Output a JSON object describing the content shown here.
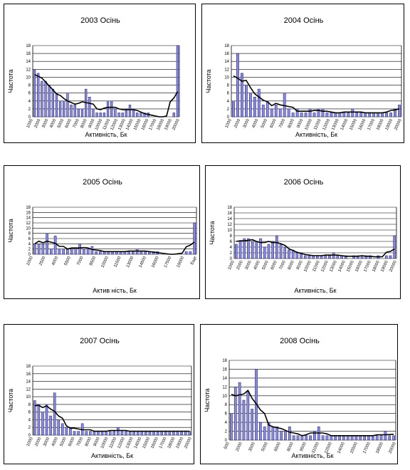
{
  "chart_data": [
    {
      "type": "bar",
      "title": "2003 Осінь",
      "xlabel": "Активність, Бк",
      "ylabel": "Частота",
      "ylim": [
        0,
        18
      ],
      "yticks": [
        "0",
        "2",
        "4",
        "6",
        "8",
        "10",
        "12",
        "14",
        "16",
        "18"
      ],
      "xticks": [
        "1000",
        "2000",
        "3000",
        "4000",
        "5000",
        "6000",
        "7000",
        "8000",
        "9000",
        "10000",
        "11000",
        "12000",
        "13000",
        "14000",
        "15000",
        "16000",
        "17000",
        "18000",
        "19000",
        "20000"
      ],
      "values": [
        12,
        11,
        9,
        9,
        8,
        7,
        6,
        4,
        4,
        6,
        3,
        3,
        2,
        2,
        7,
        5,
        2,
        1,
        1,
        1,
        4,
        4,
        2,
        1,
        1,
        2,
        3,
        2,
        1,
        1,
        1,
        1,
        0,
        0,
        0,
        0,
        0,
        0,
        1,
        18
      ]
    },
    {
      "type": "bar",
      "title": "2004 Осінь",
      "xlabel": "Активність, Бк",
      "ylabel": "Частота",
      "ylim": [
        0,
        18
      ],
      "yticks": [
        "0",
        "2",
        "4",
        "6",
        "8",
        "10",
        "12",
        "14",
        "16",
        "18"
      ],
      "xticks": [
        "1000",
        "2000",
        "3000",
        "4000",
        "5000",
        "6000",
        "7000",
        "8000",
        "9000",
        "10000",
        "11000",
        "12000",
        "13000",
        "14000",
        "15000",
        "16000",
        "17000",
        "18000",
        "19000",
        "20000"
      ],
      "values": [
        4,
        16,
        11,
        8,
        6,
        5,
        7,
        3,
        4,
        2,
        3,
        2,
        6,
        2,
        1,
        2,
        1,
        1,
        2,
        1,
        2,
        2,
        1,
        1,
        1,
        1,
        1,
        1,
        2,
        1,
        1,
        1,
        1,
        1,
        1,
        1,
        1,
        1,
        2,
        3
      ]
    },
    {
      "type": "bar",
      "title": "2005 Осінь",
      "xlabel": "Актив ність, Бк",
      "ylabel": "Частота",
      "ylim": [
        0,
        18
      ],
      "yticks": [
        "0",
        "2",
        "4",
        "6",
        "8",
        "10",
        "12",
        "14",
        "16",
        "18"
      ],
      "xticks": [
        "1000",
        "2500",
        "4000",
        "5500",
        "7000",
        "8500",
        "10000",
        "11500",
        "13000",
        "14500",
        "16000",
        "17500",
        "19000",
        "Еще"
      ],
      "values": [
        4,
        4,
        4,
        8,
        2,
        7,
        2,
        2,
        2,
        2,
        2,
        4,
        2,
        2,
        3,
        1,
        1,
        1,
        1,
        1,
        1,
        1,
        1,
        1,
        1,
        2,
        1,
        1,
        1,
        1,
        1,
        0,
        0,
        0,
        0,
        0,
        0,
        1,
        1,
        12
      ]
    },
    {
      "type": "bar",
      "title": "2006 Осінь",
      "xlabel": "Активність, Бк",
      "ylabel": "Частота",
      "ylim": [
        0,
        18
      ],
      "yticks": [
        "0",
        "2",
        "4",
        "6",
        "8",
        "10",
        "12",
        "14",
        "16",
        "18"
      ],
      "xticks": [
        "1000",
        "2000",
        "3000",
        "4000",
        "5000",
        "6000",
        "7000",
        "8000",
        "9000",
        "10000",
        "11000",
        "12000",
        "13000",
        "14000",
        "15000",
        "16000",
        "17000",
        "18000",
        "19000",
        "20000"
      ],
      "values": [
        5,
        6,
        7,
        7,
        6,
        6,
        7,
        4,
        5,
        6,
        8,
        5,
        4,
        3,
        3,
        2,
        2,
        1,
        1,
        1,
        1,
        1,
        1,
        1,
        2,
        1,
        1,
        1,
        0,
        1,
        1,
        1,
        1,
        1,
        0,
        1,
        0,
        1,
        1,
        8
      ]
    },
    {
      "type": "bar",
      "title": "2007 Осінь",
      "xlabel": "Активність, Бк",
      "ylabel": "Частота",
      "ylim": [
        0,
        18
      ],
      "yticks": [
        "0",
        "2",
        "4",
        "6",
        "8",
        "10",
        "12",
        "14",
        "16",
        "18"
      ],
      "xticks": [
        "1000",
        "2000",
        "3000",
        "4000",
        "5000",
        "6000",
        "7000",
        "8000",
        "9000",
        "10000",
        "11000",
        "12000",
        "13000",
        "14000",
        "15000",
        "16000",
        "17000",
        "18000",
        "19000",
        "20000"
      ],
      "values": [
        9,
        8,
        6,
        8,
        5,
        11,
        4,
        3,
        2,
        2,
        1,
        1,
        3,
        1,
        1,
        1,
        1,
        1,
        1,
        1,
        1,
        2,
        1,
        1,
        1,
        1,
        1,
        1,
        1,
        1,
        1,
        1,
        1,
        1,
        1,
        1,
        1,
        1,
        1,
        1
      ]
    },
    {
      "type": "bar",
      "title": "2008 Осінь",
      "xlabel": "Активність, Бк",
      "ylabel": "Частота",
      "ylim": [
        0,
        18
      ],
      "yticks": [
        "0",
        "2",
        "4",
        "6",
        "8",
        "10",
        "12",
        "14",
        "16",
        "18"
      ],
      "xticks": [
        "500",
        "2000",
        "3500",
        "5000",
        "6500",
        "8000",
        "9500",
        "11000",
        "12500",
        "14000",
        "15500",
        "17000",
        "18500",
        "20000"
      ],
      "values": [
        6,
        12,
        13,
        9,
        11,
        7,
        16,
        4,
        3,
        4,
        3,
        3,
        2,
        2,
        3,
        1,
        1,
        1,
        1,
        1,
        2,
        3,
        1,
        1,
        1,
        1,
        1,
        1,
        1,
        1,
        1,
        1,
        1,
        1,
        1,
        1,
        1,
        2,
        1,
        1
      ]
    }
  ]
}
